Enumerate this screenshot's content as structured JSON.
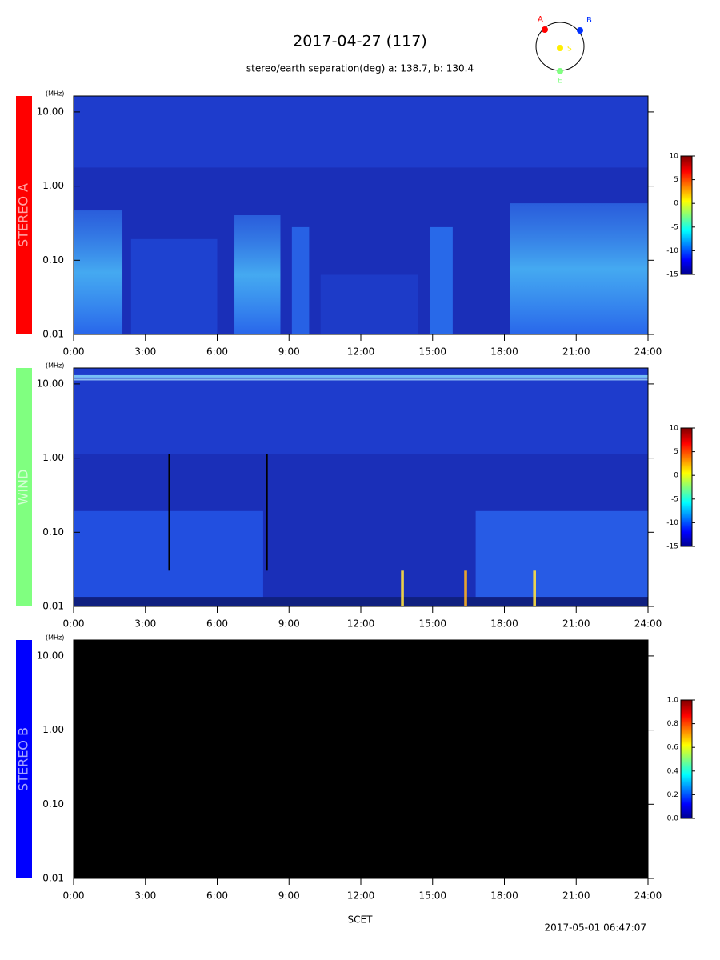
{
  "title": "2017-04-27 (117)",
  "subtitle": "stereo/earth separation(deg) a: 138.7, b: 130.4",
  "orbit_labels": [
    "A",
    "B",
    "S",
    "E"
  ],
  "x_label": "SCET",
  "timestamp": "2017-05-01 06:47:07",
  "chart_data": [
    {
      "type": "spectrogram",
      "panel_label": "STEREO A",
      "panel_color": "#ff0000",
      "background": "#1a2fb8",
      "y_unit": "(MHz)",
      "ylog": true,
      "ylim": [
        0.01,
        16.4
      ],
      "yticks": [
        {
          "value": 0.01,
          "label": "0.01"
        },
        {
          "value": 0.1,
          "label": "0.10"
        },
        {
          "value": 1,
          "label": "1.00"
        },
        {
          "value": 10,
          "label": "10.00"
        }
      ],
      "xlim": [
        0,
        24
      ],
      "xticks": [
        {
          "value": 0,
          "label": "0:00"
        },
        {
          "value": 3,
          "label": "3:00"
        },
        {
          "value": 6,
          "label": "6:00"
        },
        {
          "value": 9,
          "label": "9:00"
        },
        {
          "value": 12,
          "label": "12:00"
        },
        {
          "value": 15,
          "label": "15:00"
        },
        {
          "value": 18,
          "label": "18:00"
        },
        {
          "value": 21,
          "label": "21:00"
        },
        {
          "value": 24,
          "label": "24:00"
        }
      ],
      "clim": [
        -15,
        10
      ],
      "cticks": [
        -15,
        -10,
        -5,
        0,
        5,
        10
      ]
    },
    {
      "type": "spectrogram",
      "panel_label": "WIND",
      "panel_color": "#80ff80",
      "background": "#1a2fb8",
      "y_unit": "(MHz)",
      "ylog": true,
      "ylim": [
        0.01,
        16.4
      ],
      "yticks": [
        {
          "value": 0.01,
          "label": "0.01"
        },
        {
          "value": 0.1,
          "label": "0.10"
        },
        {
          "value": 1,
          "label": "1.00"
        },
        {
          "value": 10,
          "label": "10.00"
        }
      ],
      "xlim": [
        0,
        24
      ],
      "xticks": [
        {
          "value": 0,
          "label": "0:00"
        },
        {
          "value": 3,
          "label": "3:00"
        },
        {
          "value": 6,
          "label": "6:00"
        },
        {
          "value": 9,
          "label": "9:00"
        },
        {
          "value": 12,
          "label": "12:00"
        },
        {
          "value": 15,
          "label": "15:00"
        },
        {
          "value": 18,
          "label": "18:00"
        },
        {
          "value": 21,
          "label": "21:00"
        },
        {
          "value": 24,
          "label": "24:00"
        }
      ],
      "clim": [
        -15,
        10
      ],
      "cticks": [
        -15,
        -10,
        -5,
        0,
        5,
        10
      ]
    },
    {
      "type": "spectrogram",
      "panel_label": "STEREO B",
      "panel_color": "#0000ff",
      "background": "#000000",
      "y_unit": "(MHz)",
      "ylog": true,
      "ylim": [
        0.01,
        16.4
      ],
      "yticks": [
        {
          "value": 0.01,
          "label": "0.01"
        },
        {
          "value": 0.1,
          "label": "0.10"
        },
        {
          "value": 1,
          "label": "1.00"
        },
        {
          "value": 10,
          "label": "10.00"
        }
      ],
      "xlim": [
        0,
        24
      ],
      "xticks": [
        {
          "value": 0,
          "label": "0:00"
        },
        {
          "value": 3,
          "label": "3:00"
        },
        {
          "value": 6,
          "label": "6:00"
        },
        {
          "value": 9,
          "label": "9:00"
        },
        {
          "value": 12,
          "label": "12:00"
        },
        {
          "value": 15,
          "label": "15:00"
        },
        {
          "value": 18,
          "label": "18:00"
        },
        {
          "value": 21,
          "label": "21:00"
        },
        {
          "value": 24,
          "label": "24:00"
        }
      ],
      "clim": [
        0,
        1
      ],
      "cticks": [
        {
          "value": 0,
          "label": "0.0"
        },
        0.2,
        0.4,
        0.6,
        0.8,
        {
          "value": 1,
          "label": "1.0"
        }
      ]
    }
  ]
}
